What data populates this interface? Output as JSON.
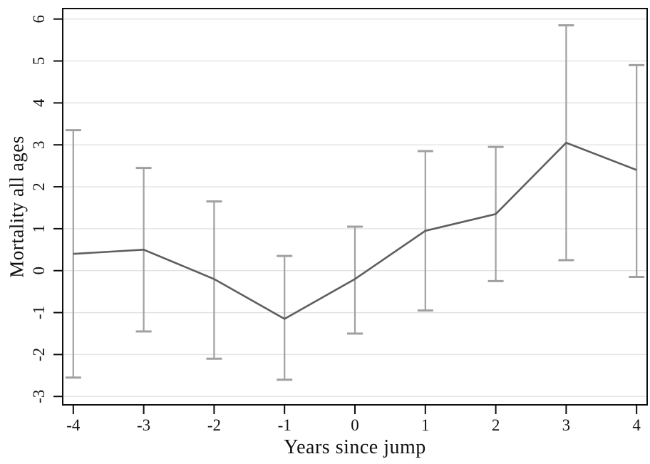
{
  "figure": {
    "background": "#ffffff"
  },
  "chart_data": {
    "type": "line",
    "title": "",
    "xlabel": "Years since jump",
    "ylabel": "Mortality all ages",
    "x": [
      -4,
      -3,
      -2,
      -1,
      0,
      1,
      2,
      3,
      4
    ],
    "series": [
      {
        "name": "point-estimate",
        "values": [
          0.4,
          0.5,
          -0.2,
          -1.15,
          -0.2,
          0.95,
          1.35,
          3.05,
          2.4
        ]
      },
      {
        "name": "ci-lower",
        "values": [
          -2.55,
          -1.45,
          -2.1,
          -2.6,
          -1.5,
          -0.95,
          -0.25,
          0.25,
          -0.15
        ]
      },
      {
        "name": "ci-upper",
        "values": [
          3.35,
          2.45,
          1.65,
          0.35,
          1.05,
          2.85,
          2.95,
          5.85,
          4.9
        ]
      }
    ],
    "x_ticks": [
      "-4",
      "-3",
      "-2",
      "-1",
      "0",
      "1",
      "2",
      "3",
      "4"
    ],
    "y_ticks": [
      "-3",
      "-2",
      "-1",
      "0",
      "1",
      "2",
      "3",
      "4",
      "5",
      "6"
    ],
    "xlim": [
      -4.15,
      4.15
    ],
    "ylim": [
      -3.2,
      6.25
    ],
    "grid": "horizontal-only",
    "legend": "none",
    "colors": {
      "line": "#5e5e5e",
      "error_bar": "#a0a0a0",
      "grid": "#e2e2e2",
      "border": "#0d0d0d",
      "tick": "#0d0d0d",
      "text": "#111111",
      "background": "#ffffff"
    }
  }
}
